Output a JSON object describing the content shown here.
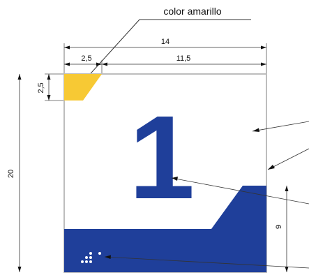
{
  "callout": {
    "label": "color amarillo"
  },
  "dimensions": {
    "total_width": "14",
    "left_width": "2,5",
    "right_width": "11,5",
    "corner_height": "2,5",
    "total_height": "20",
    "band_height": "9"
  },
  "sign": {
    "number": "1",
    "colors": {
      "blue": "#1f3f9a",
      "yellow": "#f7c934",
      "border": "#bdbdbd"
    }
  }
}
